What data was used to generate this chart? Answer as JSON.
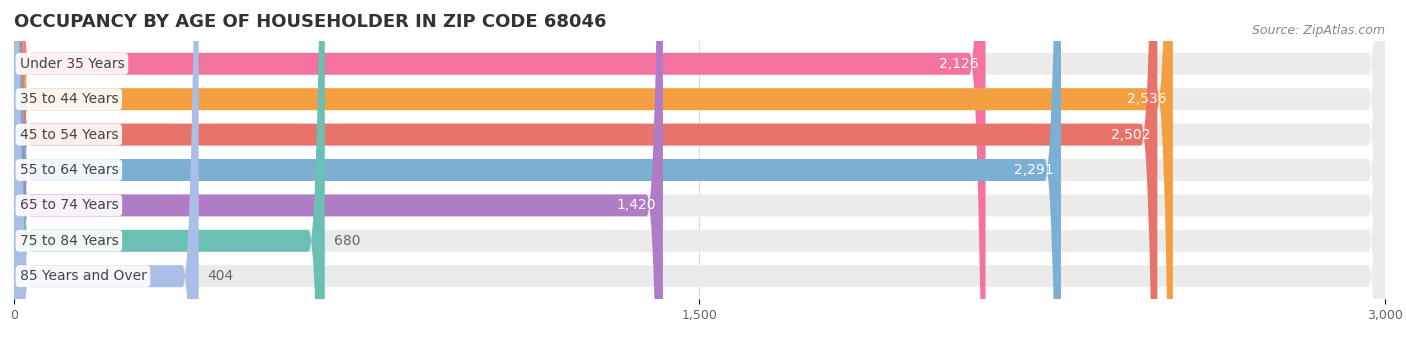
{
  "title": "OCCUPANCY BY AGE OF HOUSEHOLDER IN ZIP CODE 68046",
  "source": "Source: ZipAtlas.com",
  "categories": [
    "Under 35 Years",
    "35 to 44 Years",
    "45 to 54 Years",
    "55 to 64 Years",
    "65 to 74 Years",
    "75 to 84 Years",
    "85 Years and Over"
  ],
  "values": [
    2126,
    2536,
    2502,
    2291,
    1420,
    680,
    404
  ],
  "bar_colors": [
    "#F472A0",
    "#F5A040",
    "#E8736A",
    "#7BAFD4",
    "#B07CC6",
    "#6BBFB5",
    "#AABEE8"
  ],
  "bar_bg_color": "#EBEBEB",
  "xlim": [
    0,
    3000
  ],
  "xticks": [
    0,
    1500,
    3000
  ],
  "title_fontsize": 13,
  "label_fontsize": 10,
  "value_fontsize": 10,
  "source_fontsize": 9,
  "background_color": "#FFFFFF",
  "bar_height": 0.62
}
